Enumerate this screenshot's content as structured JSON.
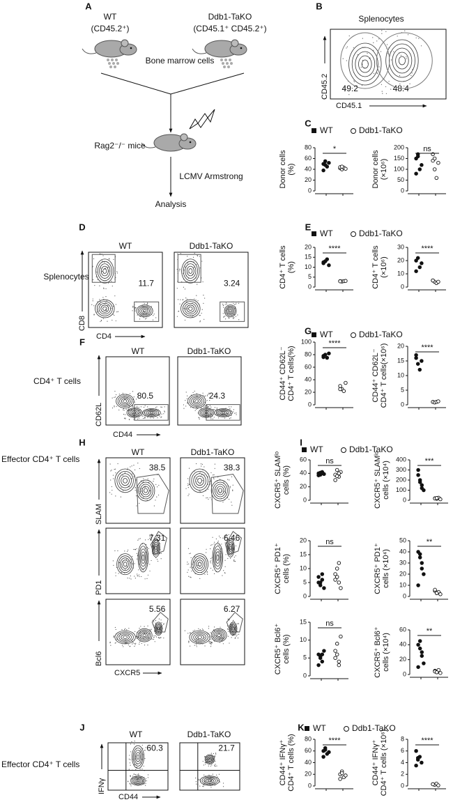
{
  "panel_labels": [
    "A",
    "B",
    "C",
    "D",
    "E",
    "F",
    "G",
    "H",
    "I",
    "J",
    "K"
  ],
  "schematic": {
    "donor_wt": "WT",
    "donor_wt_marker": "(CD45.2⁺)",
    "donor_ko": "Ddb1-TaKO",
    "donor_ko_marker": "(CD45.1⁺ CD45.2⁺)",
    "cells": "Bone marrow cells",
    "recipient": "Rag2⁻/⁻ mice",
    "infection": "LCMV Armstrong",
    "readout": "Analysis"
  },
  "groups": [
    "WT",
    "Ddb1-TaKO"
  ],
  "flow": {
    "B": {
      "title": "Splenocytes",
      "x_label": "CD45.1",
      "y_label": "CD45.2",
      "gates": [
        "49.2",
        "48.4"
      ]
    },
    "D": {
      "row_label": "Splenocytes",
      "x_label": "CD4",
      "y_label": "CD8",
      "gates": [
        "11.7",
        "3.24"
      ]
    },
    "F": {
      "row_label": "CD4⁺ T cells",
      "x_label": "CD44",
      "y_label": "CD62L",
      "gates": [
        "80.5",
        "24.3"
      ]
    },
    "H": {
      "row_label": "Effector CD4⁺ T cells",
      "x_label": "CXCR5",
      "y_labels": [
        "SLAM",
        "PD1",
        "Bcl6"
      ],
      "gates": [
        [
          "38.5",
          "38.3"
        ],
        [
          "7.31",
          "6.46"
        ],
        [
          "5.56",
          "6.27"
        ]
      ]
    },
    "J": {
      "row_label": "Effector CD4⁺ T cells",
      "x_label": "CD44",
      "y_label": "IFNγ",
      "gates": [
        "60.3",
        "21.7"
      ]
    }
  },
  "chart_data": [
    {
      "type": "dot",
      "ylabel": [
        "Donor cells",
        "(%)"
      ],
      "ylim": [
        0,
        80
      ],
      "yticks": [
        0,
        20,
        40,
        60,
        80
      ],
      "sig": "*",
      "series": [
        {
          "marker": "filled",
          "values": [
            50,
            55,
            45,
            52,
            38,
            48
          ]
        },
        {
          "marker": "open",
          "values": [
            42,
            40,
            43,
            41,
            44,
            45
          ]
        }
      ]
    },
    {
      "type": "dot",
      "ylabel": [
        "Donor cells",
        "(×10⁶)"
      ],
      "ylim": [
        0,
        200
      ],
      "yticks": [
        0,
        50,
        100,
        150,
        200
      ],
      "sig": "ns",
      "series": [
        {
          "marker": "filled",
          "values": [
            150,
            170,
            100,
            120,
            80,
            160
          ]
        },
        {
          "marker": "open",
          "values": [
            140,
            150,
            60,
            130,
            170,
            100
          ]
        }
      ]
    },
    {
      "type": "dot",
      "ylabel": [
        "CD4⁺ T cells",
        "(%)"
      ],
      "ylim": [
        0,
        20
      ],
      "yticks": [
        0,
        5,
        10,
        15,
        20
      ],
      "sig": "****",
      "series": [
        {
          "marker": "filled",
          "values": [
            12,
            13,
            14,
            11,
            12.5,
            13
          ]
        },
        {
          "marker": "open",
          "values": [
            3,
            2.8,
            3,
            3.1,
            2.9
          ]
        }
      ]
    },
    {
      "type": "dot",
      "ylabel": [
        "CD4⁺ T cells",
        "(×10⁶)"
      ],
      "ylim": [
        0,
        30
      ],
      "yticks": [
        0,
        10,
        20,
        30
      ],
      "sig": "****",
      "series": [
        {
          "marker": "filled",
          "values": [
            20,
            22,
            15,
            18,
            12
          ]
        },
        {
          "marker": "open",
          "values": [
            5,
            4,
            3,
            4,
            5
          ]
        }
      ]
    },
    {
      "type": "dot",
      "ylabel": [
        "CD44⁺ CD62L⁻",
        "CD4⁺ T cells(%)"
      ],
      "ylim": [
        0,
        100
      ],
      "yticks": [
        0,
        20,
        40,
        60,
        80,
        100
      ],
      "sig": "****",
      "series": [
        {
          "marker": "filled",
          "values": [
            78,
            80,
            75,
            82,
            76
          ]
        },
        {
          "marker": "open",
          "values": [
            30,
            25,
            22,
            35,
            25
          ]
        }
      ]
    },
    {
      "type": "dot",
      "ylabel": [
        "CD44⁺ CD62L⁻",
        "CD4⁺ T cells(×10⁶)"
      ],
      "ylim": [
        0,
        20
      ],
      "yticks": [
        0,
        5,
        10,
        15,
        20
      ],
      "sig": "****",
      "series": [
        {
          "marker": "filled",
          "values": [
            16,
            14,
            12,
            15,
            17
          ]
        },
        {
          "marker": "open",
          "values": [
            1,
            0.8,
            1,
            1.2
          ]
        }
      ]
    },
    {
      "type": "dot",
      "ylabel": [
        "CXCR5⁺ SLAMˡᵒ",
        "cells (%)"
      ],
      "ylim": [
        0,
        60
      ],
      "yticks": [
        0,
        20,
        40,
        60
      ],
      "sig": "ns",
      "series": [
        {
          "marker": "filled",
          "values": [
            40,
            38,
            42,
            39,
            37,
            41,
            40
          ]
        },
        {
          "marker": "open",
          "values": [
            38,
            45,
            35,
            42,
            30,
            36,
            40
          ]
        }
      ]
    },
    {
      "type": "dot",
      "ylabel": [
        "CXCR5⁺ SLAMˡᵒ",
        "cells (×10⁴)"
      ],
      "ylim": [
        0,
        400
      ],
      "yticks": [
        0,
        100,
        200,
        300,
        400
      ],
      "sig": "***",
      "series": [
        {
          "marker": "filled",
          "values": [
            250,
            200,
            150,
            100,
            300,
            180,
            120
          ]
        },
        {
          "marker": "open",
          "values": [
            20,
            15,
            25,
            10,
            18,
            22
          ]
        }
      ]
    },
    {
      "type": "dot",
      "ylabel": [
        "CXCR5⁺ PD1⁺",
        "cells (%)"
      ],
      "ylim": [
        0,
        20
      ],
      "yticks": [
        0,
        5,
        10,
        15,
        20
      ],
      "sig": "ns",
      "series": [
        {
          "marker": "filled",
          "values": [
            5,
            4,
            6,
            3,
            7,
            5,
            8
          ]
        },
        {
          "marker": "open",
          "values": [
            6,
            10,
            5,
            3,
            8,
            7,
            12
          ]
        }
      ]
    },
    {
      "type": "dot",
      "ylabel": [
        "CXCR5⁺ PD1⁺",
        "cells (×10⁴)"
      ],
      "ylim": [
        0,
        50
      ],
      "yticks": [
        0,
        10,
        20,
        30,
        40,
        50
      ],
      "sig": "**",
      "series": [
        {
          "marker": "filled",
          "values": [
            40,
            35,
            30,
            20,
            10,
            38,
            25
          ]
        },
        {
          "marker": "open",
          "values": [
            5,
            3,
            4,
            2,
            6,
            3
          ]
        }
      ]
    },
    {
      "type": "dot",
      "ylabel": [
        "CXCR5⁺ Bcl6⁺",
        "cells (%)"
      ],
      "ylim": [
        0,
        15
      ],
      "yticks": [
        0,
        5,
        10,
        15
      ],
      "sig": "ns",
      "series": [
        {
          "marker": "filled",
          "values": [
            6,
            5,
            4,
            7,
            3,
            5.5,
            6
          ]
        },
        {
          "marker": "open",
          "values": [
            7,
            9,
            4,
            11,
            5,
            6,
            3
          ]
        }
      ]
    },
    {
      "type": "dot",
      "ylabel": [
        "CXCR5⁺ Bcl6⁺",
        "cells (×10⁴)"
      ],
      "ylim": [
        0,
        60
      ],
      "yticks": [
        0,
        20,
        40,
        60
      ],
      "sig": "**",
      "series": [
        {
          "marker": "filled",
          "values": [
            40,
            35,
            25,
            15,
            10,
            45,
            30
          ]
        },
        {
          "marker": "open",
          "values": [
            5,
            3,
            6,
            2,
            4,
            3
          ]
        }
      ]
    },
    {
      "type": "dot",
      "ylabel": [
        "CD44⁺ IFNγ⁺",
        "CD4⁺ T cells (%)"
      ],
      "ylim": [
        0,
        80
      ],
      "yticks": [
        0,
        20,
        40,
        60,
        80
      ],
      "sig": "****",
      "series": [
        {
          "marker": "filled",
          "values": [
            60,
            65,
            55,
            58,
            50,
            62
          ]
        },
        {
          "marker": "open",
          "values": [
            20,
            25,
            15,
            18,
            12,
            22
          ]
        }
      ]
    },
    {
      "type": "dot",
      "ylabel": [
        "CD44⁺ IFNγ⁺",
        "CD4⁺ T cells (×10⁶)"
      ],
      "ylim": [
        0,
        8
      ],
      "yticks": [
        0,
        2,
        4,
        6,
        8
      ],
      "sig": "****",
      "series": [
        {
          "marker": "filled",
          "values": [
            6,
            4.5,
            5,
            4,
            3.5,
            4.8
          ]
        },
        {
          "marker": "open",
          "values": [
            0.3,
            0.2,
            0.4,
            0.1,
            0.3
          ]
        }
      ]
    }
  ]
}
